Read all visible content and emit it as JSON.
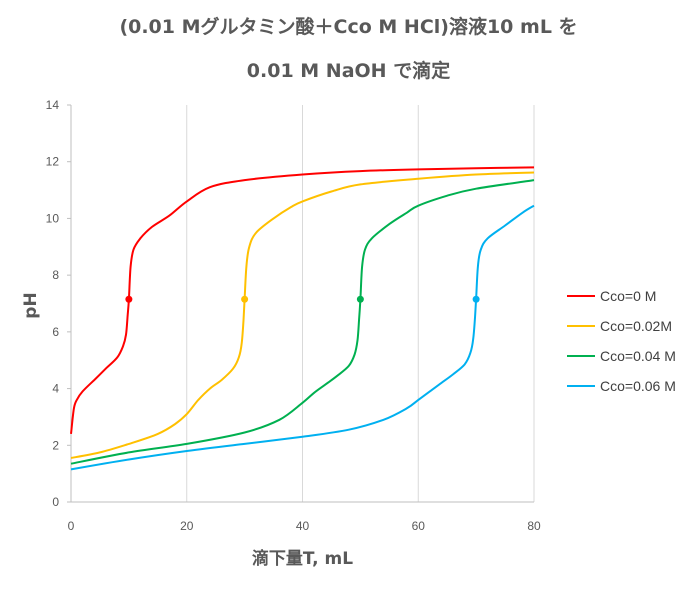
{
  "chart_data": {
    "type": "line",
    "title_line1": "(0.01 Mグルタミン酸＋Cco M HCl)溶液10 mL を",
    "title_line2": "0.01 M NaOH で滴定",
    "xlabel": "滴下量T, mL",
    "ylabel": "pH",
    "xlim": [
      0,
      80
    ],
    "ylim": [
      0,
      14
    ],
    "xticks": [
      "0",
      "20",
      "40",
      "60",
      "80"
    ],
    "yticks": [
      "0",
      "2",
      "4",
      "6",
      "8",
      "10",
      "12",
      "14"
    ],
    "grid": "vertical",
    "legend_position": "right",
    "series": [
      {
        "name": "Cco=0 M",
        "color": "#ff0000",
        "x": [
          0,
          0.5,
          1,
          2,
          4,
          6,
          8,
          9,
          9.5,
          9.8,
          10,
          10.3,
          10.8,
          12,
          14,
          17,
          20,
          24,
          30,
          40,
          50,
          60,
          70,
          80
        ],
        "y": [
          2.4,
          3.3,
          3.6,
          3.9,
          4.3,
          4.7,
          5.1,
          5.5,
          5.9,
          6.6,
          7.15,
          8.3,
          8.9,
          9.3,
          9.7,
          10.1,
          10.6,
          11.1,
          11.35,
          11.55,
          11.67,
          11.73,
          11.77,
          11.8
        ]
      },
      {
        "name": "Cco=0.02M",
        "color": "#ffc000",
        "x": [
          0,
          5,
          10,
          15,
          18,
          20,
          22,
          24,
          26,
          28,
          29,
          29.5,
          29.8,
          30,
          30.3,
          30.8,
          32,
          35,
          38,
          40,
          45,
          50,
          60,
          70,
          80
        ],
        "y": [
          1.55,
          1.75,
          2.05,
          2.4,
          2.75,
          3.1,
          3.6,
          4.0,
          4.3,
          4.7,
          5.1,
          5.6,
          6.4,
          7.15,
          8.3,
          9.0,
          9.5,
          10.0,
          10.4,
          10.6,
          10.95,
          11.2,
          11.4,
          11.55,
          11.62
        ]
      },
      {
        "name": "Cco=0.04 M",
        "color": "#00b050",
        "x": [
          0,
          10,
          20,
          30,
          36,
          40,
          42,
          44,
          46,
          48,
          49,
          49.5,
          49.8,
          50,
          50.3,
          50.8,
          52,
          55,
          58,
          60,
          65,
          70,
          80
        ],
        "y": [
          1.35,
          1.75,
          2.05,
          2.45,
          2.9,
          3.5,
          3.85,
          4.15,
          4.45,
          4.8,
          5.2,
          5.7,
          6.5,
          7.15,
          8.3,
          8.9,
          9.3,
          9.8,
          10.2,
          10.45,
          10.8,
          11.05,
          11.35
        ]
      },
      {
        "name": "Cco=0.06 M",
        "color": "#00b0f0",
        "x": [
          0,
          10,
          20,
          30,
          40,
          48,
          54,
          58,
          60,
          62,
          64,
          66,
          68,
          69,
          69.5,
          69.8,
          70,
          70.3,
          70.8,
          72,
          75,
          78,
          80
        ],
        "y": [
          1.15,
          1.5,
          1.8,
          2.05,
          2.3,
          2.55,
          2.9,
          3.3,
          3.6,
          3.9,
          4.2,
          4.5,
          4.85,
          5.25,
          5.75,
          6.5,
          7.15,
          8.3,
          8.9,
          9.3,
          9.75,
          10.2,
          10.45
        ]
      }
    ],
    "markers": [
      {
        "series": 0,
        "x": 10,
        "y": 7.15
      },
      {
        "series": 1,
        "x": 30,
        "y": 7.15
      },
      {
        "series": 2,
        "x": 50,
        "y": 7.15
      },
      {
        "series": 3,
        "x": 70,
        "y": 7.15
      }
    ]
  }
}
